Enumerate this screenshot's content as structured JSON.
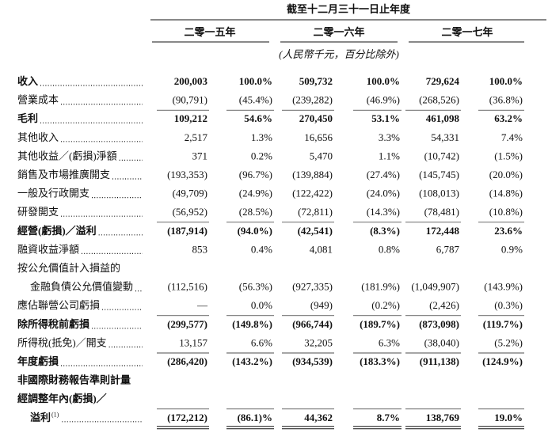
{
  "header": {
    "period": "截至十二月三十一日止年度",
    "years": [
      "二零一五年",
      "二零一六年",
      "二零一七年"
    ],
    "unit": "(人民幣千元，百分比除外)"
  },
  "table": {
    "rows": [
      {
        "label": "收入",
        "bold": true,
        "leader": true,
        "values": [
          "200,003",
          "100.0%",
          "509,732",
          "100.0%",
          "729,624",
          "100.0%"
        ]
      },
      {
        "label": "營業成本",
        "leader": true,
        "values": [
          "(90,791)",
          "(45.4%)",
          "(239,282)",
          "(46.9%)",
          "(268,526)",
          "(36.8%)"
        ]
      },
      {
        "label": "毛利",
        "bold": true,
        "leader": true,
        "values": [
          "109,212",
          "54.6%",
          "270,450",
          "53.1%",
          "461,098",
          "63.2%"
        ]
      },
      {
        "label": "其他收入",
        "leader": true,
        "values": [
          "2,517",
          "1.3%",
          "16,656",
          "3.3%",
          "54,331",
          "7.4%"
        ]
      },
      {
        "label": "其他收益／(虧損)淨額",
        "leader": true,
        "values": [
          "371",
          "0.2%",
          "5,470",
          "1.1%",
          "(10,742)",
          "(1.5%)"
        ]
      },
      {
        "label": "銷售及市場推廣開支",
        "leader": true,
        "values": [
          "(193,353)",
          "(96.7%)",
          "(139,884)",
          "(27.4%)",
          "(145,745)",
          "(20.0%)"
        ]
      },
      {
        "label": "一般及行政開支",
        "leader": true,
        "values": [
          "(49,709)",
          "(24.9%)",
          "(122,422)",
          "(24.0%)",
          "(108,013)",
          "(14.8%)"
        ]
      },
      {
        "label": "研發開支",
        "leader": true,
        "values": [
          "(56,952)",
          "(28.5%)",
          "(72,811)",
          "(14.3%)",
          "(78,481)",
          "(10.8%)"
        ]
      },
      {
        "label": "經營(虧損)／溢利",
        "bold": true,
        "leader": true,
        "values": [
          "(187,914)",
          "(94.0%)",
          "(42,541)",
          "(8.3%)",
          "172,448",
          "23.6%"
        ]
      },
      {
        "label": "融資收益淨額",
        "leader": true,
        "values": [
          "853",
          "0.4%",
          "4,081",
          "0.8%",
          "6,787",
          "0.9%"
        ]
      },
      {
        "label": "按公允價值計入損益的"
      },
      {
        "label": "金融負債公允價值變動",
        "indent": true,
        "leader": true,
        "values": [
          "(112,516)",
          "(56.3%)",
          "(927,335)",
          "(181.9%)",
          "(1,049,907)",
          "(143.9%)"
        ]
      },
      {
        "label": "應佔聯營公司虧損",
        "leader": true,
        "values": [
          "—",
          "0.0%",
          "(949)",
          "(0.2%)",
          "(2,426)",
          "(0.3%)"
        ]
      },
      {
        "label": "除所得稅前虧損",
        "bold": true,
        "leader": true,
        "values": [
          "(299,577)",
          "(149.8%)",
          "(966,744)",
          "(189.7%)",
          "(873,098)",
          "(119.7%)"
        ]
      },
      {
        "label": "所得稅(抵免)／開支",
        "leader": true,
        "values": [
          "13,157",
          "6.6%",
          "32,205",
          "6.3%",
          "(38,040)",
          "(5.2%)"
        ]
      },
      {
        "label": "年度虧損",
        "bold": true,
        "leader": true,
        "values": [
          "(286,420)",
          "(143.2%)",
          "(934,539)",
          "(183.3%)",
          "(911,138)",
          "(124.9%)"
        ]
      },
      {
        "label": "非國際財務報告準則計量",
        "bold": true
      },
      {
        "label": "經調整年內(虧損)／",
        "bold": true
      },
      {
        "label": "溢利",
        "note": "(1)",
        "bold": true,
        "indent": true,
        "leader": true,
        "values": [
          "(172,212)",
          "(86.1)%",
          "44,362",
          "8.7%",
          "138,769",
          "19.0%"
        ]
      }
    ]
  }
}
